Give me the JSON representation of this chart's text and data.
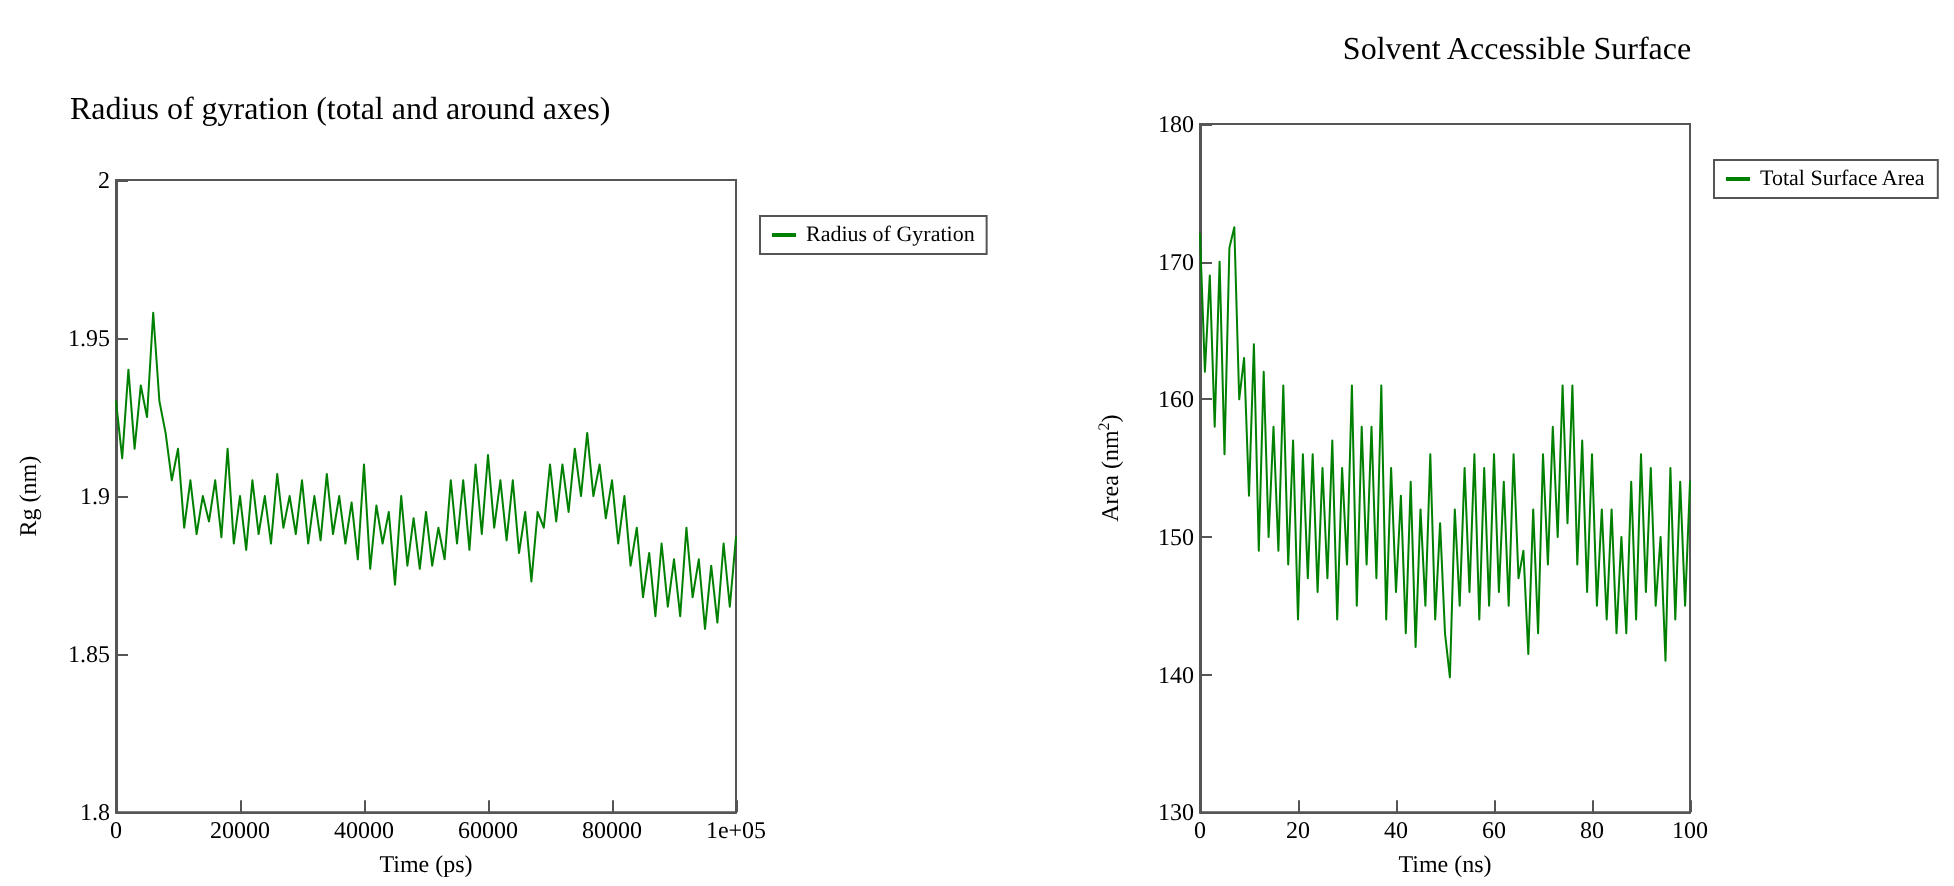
{
  "chart_data": [
    {
      "type": "line",
      "title": "Radius of gyration (total and around axes)",
      "xlabel": "Time (ps)",
      "ylabel": "Rg (nm)",
      "legend": "right",
      "grid": false,
      "marker": "none",
      "line_style": "solid",
      "xlim": [
        0,
        100000
      ],
      "xticks": [
        0,
        20000,
        40000,
        60000,
        80000,
        {
          "value": 100000,
          "label": "1e+05"
        }
      ],
      "ylim": [
        1.8,
        2
      ],
      "yticks": [
        1.8,
        1.85,
        1.9,
        1.95,
        2
      ],
      "x": [
        0,
        1000,
        2000,
        3000,
        4000,
        5000,
        6000,
        7000,
        8000,
        9000,
        10000,
        11000,
        12000,
        13000,
        14000,
        15000,
        16000,
        17000,
        18000,
        19000,
        20000,
        21000,
        22000,
        23000,
        24000,
        25000,
        26000,
        27000,
        28000,
        29000,
        30000,
        31000,
        32000,
        33000,
        34000,
        35000,
        36000,
        37000,
        38000,
        39000,
        40000,
        41000,
        42000,
        43000,
        44000,
        45000,
        46000,
        47000,
        48000,
        49000,
        50000,
        51000,
        52000,
        53000,
        54000,
        55000,
        56000,
        57000,
        58000,
        59000,
        60000,
        61000,
        62000,
        63000,
        64000,
        65000,
        66000,
        67000,
        68000,
        69000,
        70000,
        71000,
        72000,
        73000,
        74000,
        75000,
        76000,
        77000,
        78000,
        79000,
        80000,
        81000,
        82000,
        83000,
        84000,
        85000,
        86000,
        87000,
        88000,
        89000,
        90000,
        91000,
        92000,
        93000,
        94000,
        95000,
        96000,
        97000,
        98000,
        99000,
        100000
      ],
      "series": [
        {
          "name": "Radius of Gyration",
          "color": "#008000",
          "values": [
            1.93,
            1.912,
            1.94,
            1.915,
            1.935,
            1.925,
            1.958,
            1.93,
            1.92,
            1.905,
            1.915,
            1.89,
            1.905,
            1.888,
            1.9,
            1.892,
            1.905,
            1.887,
            1.915,
            1.885,
            1.9,
            1.883,
            1.905,
            1.888,
            1.9,
            1.885,
            1.907,
            1.89,
            1.9,
            1.888,
            1.905,
            1.885,
            1.9,
            1.886,
            1.907,
            1.888,
            1.9,
            1.885,
            1.898,
            1.88,
            1.91,
            1.877,
            1.897,
            1.885,
            1.895,
            1.872,
            1.9,
            1.878,
            1.893,
            1.877,
            1.895,
            1.878,
            1.89,
            1.88,
            1.905,
            1.885,
            1.905,
            1.883,
            1.91,
            1.888,
            1.913,
            1.89,
            1.905,
            1.886,
            1.905,
            1.882,
            1.895,
            1.873,
            1.895,
            1.89,
            1.91,
            1.892,
            1.91,
            1.895,
            1.915,
            1.9,
            1.92,
            1.9,
            1.91,
            1.893,
            1.905,
            1.885,
            1.9,
            1.878,
            1.89,
            1.868,
            1.882,
            1.862,
            1.885,
            1.865,
            1.88,
            1.862,
            1.89,
            1.868,
            1.88,
            1.858,
            1.878,
            1.86,
            1.885,
            1.865,
            1.887
          ]
        }
      ]
    },
    {
      "type": "line",
      "title": "Solvent Accessible Surface",
      "xlabel": "Time (ns)",
      "ylabel": "Area (nm$^{2}$)",
      "legend": "right",
      "grid": false,
      "marker": "none",
      "line_style": "solid",
      "xlim": [
        0,
        100
      ],
      "xticks": [
        0,
        20,
        40,
        60,
        80,
        100
      ],
      "ylim": [
        130,
        180
      ],
      "yticks": [
        130,
        140,
        150,
        160,
        170,
        180
      ],
      "x": [
        0,
        1,
        2,
        3,
        4,
        5,
        6,
        7,
        8,
        9,
        10,
        11,
        12,
        13,
        14,
        15,
        16,
        17,
        18,
        19,
        20,
        21,
        22,
        23,
        24,
        25,
        26,
        27,
        28,
        29,
        30,
        31,
        32,
        33,
        34,
        35,
        36,
        37,
        38,
        39,
        40,
        41,
        42,
        43,
        44,
        45,
        46,
        47,
        48,
        49,
        50,
        51,
        52,
        53,
        54,
        55,
        56,
        57,
        58,
        59,
        60,
        61,
        62,
        63,
        64,
        65,
        66,
        67,
        68,
        69,
        70,
        71,
        72,
        73,
        74,
        75,
        76,
        77,
        78,
        79,
        80,
        81,
        82,
        83,
        84,
        85,
        86,
        87,
        88,
        89,
        90,
        91,
        92,
        93,
        94,
        95,
        96,
        97,
        98,
        99,
        100
      ],
      "series": [
        {
          "name": "Total Surface Area",
          "color": "#008000",
          "values": [
            172,
            162,
            169,
            158,
            170,
            156,
            171,
            172.5,
            160,
            163,
            153,
            164,
            149,
            162,
            150,
            158,
            149,
            161,
            148,
            157,
            144,
            156,
            147,
            156,
            146,
            155,
            147,
            157,
            144,
            155,
            148,
            161,
            145,
            158,
            148,
            158,
            147,
            161,
            144,
            155,
            146,
            153,
            143,
            154,
            142,
            152,
            145,
            156,
            144,
            151,
            143,
            139.8,
            152,
            145,
            155,
            146,
            156,
            144,
            155,
            145,
            156,
            146,
            154,
            145,
            156,
            147,
            149,
            141.5,
            152,
            143,
            156,
            148,
            158,
            150,
            161,
            151,
            161,
            148,
            157,
            146,
            156,
            145,
            152,
            144,
            152,
            143,
            150,
            143,
            154,
            144,
            156,
            146,
            155,
            145,
            150,
            141,
            155,
            144,
            154,
            145,
            154
          ]
        }
      ]
    }
  ]
}
